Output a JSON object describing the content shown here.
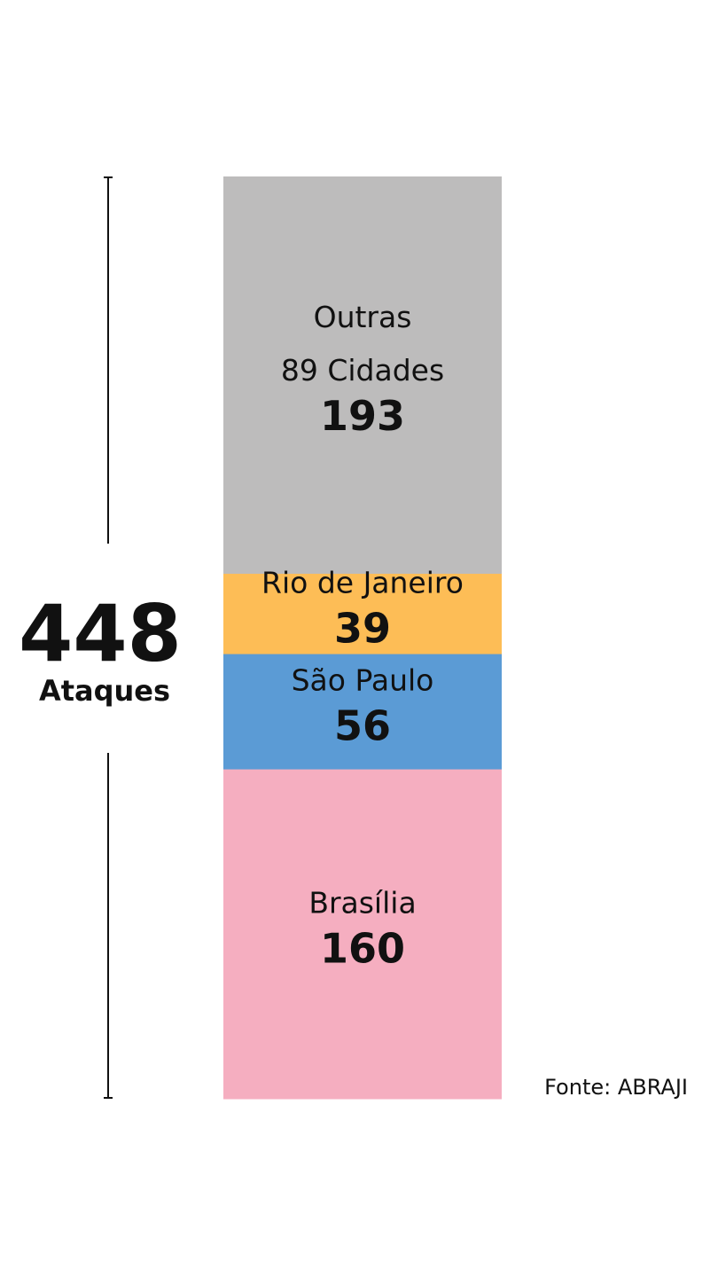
{
  "chart_data": {
    "type": "bar",
    "stacked": true,
    "total": {
      "value": "448",
      "label": "Ataques"
    },
    "source": "Fonte: ABRAJI",
    "segments": [
      {
        "lines": [
          "Outras",
          "89 Cidades"
        ],
        "value": 193,
        "display": "193",
        "color": "#bdbcbc"
      },
      {
        "lines": [
          "Rio de Janeiro"
        ],
        "value": 39,
        "display": "39",
        "color": "#fdbd56"
      },
      {
        "lines": [
          "São Paulo"
        ],
        "value": 56,
        "display": "56",
        "color": "#5b9bd5"
      },
      {
        "lines": [
          "Brasília"
        ],
        "value": 160,
        "display": "160",
        "color": "#f5aec0"
      }
    ]
  }
}
